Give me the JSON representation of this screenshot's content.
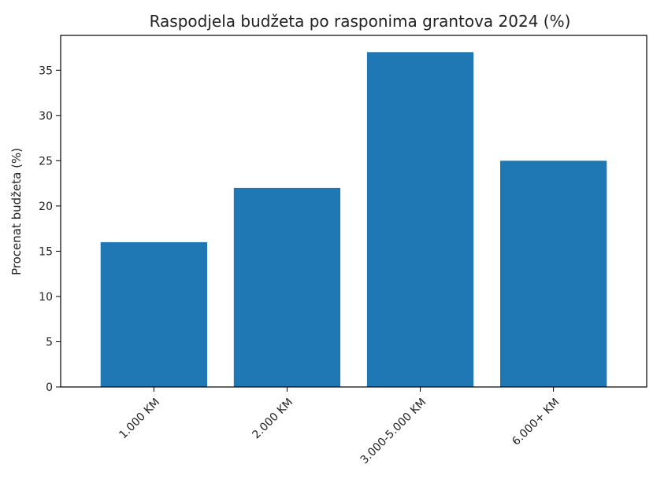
{
  "chart_data": {
    "type": "bar",
    "title": "Raspodjela budžeta po rasponima grantova 2024 (%)",
    "xlabel": "",
    "ylabel": "Procenat budžeta (%)",
    "categories": [
      "1.000 KM",
      "2.000 KM",
      "3.000-5.000 KM",
      "6.000+ KM"
    ],
    "values": [
      16,
      22,
      37,
      25
    ],
    "ylim": [
      0,
      38.85
    ],
    "yticks": [
      0,
      5,
      10,
      15,
      20,
      25,
      30,
      35
    ],
    "grid": false,
    "bar_color": "#1f77b4"
  }
}
